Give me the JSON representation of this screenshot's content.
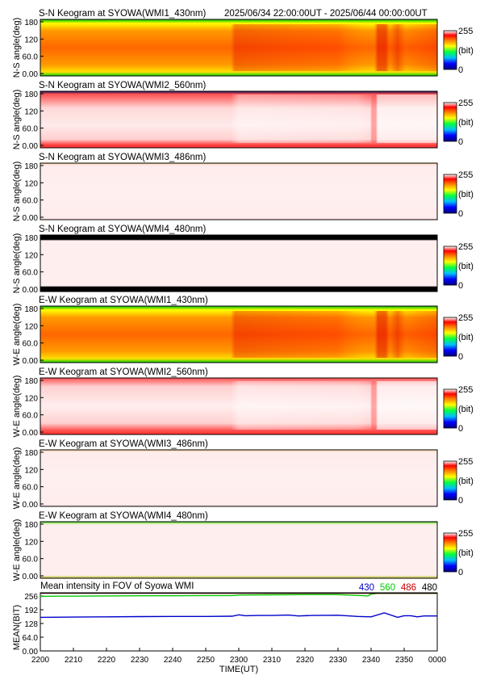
{
  "header": {
    "time_range": "2025/06/34 22:00:00UT - 2025/06/44 00:00:00UT"
  },
  "colorbar": {
    "max_label": "255",
    "unit_label": "(bit)",
    "min_label": "0"
  },
  "keograms": [
    {
      "title": "S-N Keogram at SYOWA(WMI1_430nm)",
      "ylabel": "N-S angle(deg)",
      "yticks": [
        "180",
        "120",
        "60.0",
        "0.00"
      ],
      "profile": "red430",
      "flip": false
    },
    {
      "title": "S-N Keogram at SYOWA(WMI2_560nm)",
      "ylabel": "N-S angle(deg)",
      "yticks": [
        "180",
        "120",
        "60.0",
        "0.00"
      ],
      "profile": "pink560",
      "flip": false
    },
    {
      "title": "S-N Keogram at SYOWA(WMI3_486nm)",
      "ylabel": "N-S angle(deg)",
      "yticks": [
        "180",
        "120",
        "60.0",
        "0.00"
      ],
      "profile": "pale486",
      "flip": false
    },
    {
      "title": "S-N Keogram at SYOWA(WMI4_480nm)",
      "ylabel": "N-S angle(deg)",
      "yticks": [
        "180",
        "120",
        "60.0",
        "0.00"
      ],
      "profile": "pale480",
      "flip": false
    },
    {
      "title": "E-W Keogram at SYOWA(WMI1_430nm)",
      "ylabel": "W-E angle(deg)",
      "yticks": [
        "180",
        "120",
        "60.0",
        "0.00"
      ],
      "profile": "red430",
      "flip": false
    },
    {
      "title": "E-W Keogram at SYOWA(WMI2_560nm)",
      "ylabel": "W-E angle(deg)",
      "yticks": [
        "180",
        "120",
        "60.0",
        "0.00"
      ],
      "profile": "pink560ew",
      "flip": false
    },
    {
      "title": "E-W Keogram at SYOWA(WMI3_486nm)",
      "ylabel": "W-E angle(deg)",
      "yticks": [
        "180",
        "120",
        "60.0",
        "0.00"
      ],
      "profile": "pale486",
      "flip": false
    },
    {
      "title": "E-W Keogram at SYOWA(WMI4_480nm)",
      "ylabel": "W-E angle(deg)",
      "yticks": [
        "180",
        "120",
        "60.0",
        "0.00"
      ],
      "profile": "pale480ew",
      "flip": false
    }
  ],
  "colors": {
    "bg": "#ffffff",
    "axis": "#000000",
    "s430": "#0000cc",
    "s560": "#00cc00",
    "s486": "#cc0000",
    "s480": "#000000"
  },
  "chart_data": {
    "type": "line",
    "title": "Mean intensity in FOV of Syowa WMI",
    "xlabel": "TIME(UT)",
    "ylabel": "MEAN(BIT)",
    "xticks": [
      "2200",
      "2210",
      "2220",
      "2230",
      "2240",
      "2250",
      "2300",
      "2310",
      "2320",
      "2330",
      "2340",
      "2350",
      "0000"
    ],
    "xlim": [
      0,
      120
    ],
    "ylim": [
      0,
      256
    ],
    "yticks": [
      "256",
      "192",
      "128",
      "64.0",
      "0.00"
    ],
    "legend": [
      "430",
      "560",
      "486",
      "480"
    ],
    "legend_placement": "top-right",
    "series": [
      {
        "name": "430",
        "color": "#0000cc",
        "x": [
          0,
          10,
          20,
          30,
          40,
          50,
          58,
          60,
          62,
          66,
          70,
          75,
          78,
          82,
          90,
          96,
          100,
          104,
          108,
          110,
          112,
          114,
          116,
          120
        ],
        "y": [
          148,
          149,
          150,
          151,
          152,
          152,
          153,
          159,
          155,
          156,
          156,
          158,
          154,
          156,
          157,
          152,
          150,
          168,
          148,
          155,
          155,
          150,
          154,
          154
        ]
      },
      {
        "name": "560",
        "color": "#00cc00",
        "x": [
          0,
          5,
          10,
          20,
          30,
          40,
          50,
          55,
          58,
          60,
          70,
          80,
          90,
          97,
          99,
          100,
          102,
          106,
          110,
          120
        ],
        "y": [
          240,
          241,
          241,
          242,
          243,
          243,
          244,
          244,
          244,
          246,
          247,
          248,
          248,
          244,
          242,
          250,
          253,
          253,
          253,
          253
        ]
      },
      {
        "name": "486",
        "color": "#cc0000",
        "x": [
          0,
          30,
          60,
          90,
          120
        ],
        "y": [
          254,
          254,
          254,
          254,
          254
        ]
      },
      {
        "name": "480",
        "color": "#000000",
        "x": [
          0,
          30,
          60,
          90,
          120
        ],
        "y": [
          255,
          255,
          255,
          255,
          255
        ]
      }
    ]
  }
}
